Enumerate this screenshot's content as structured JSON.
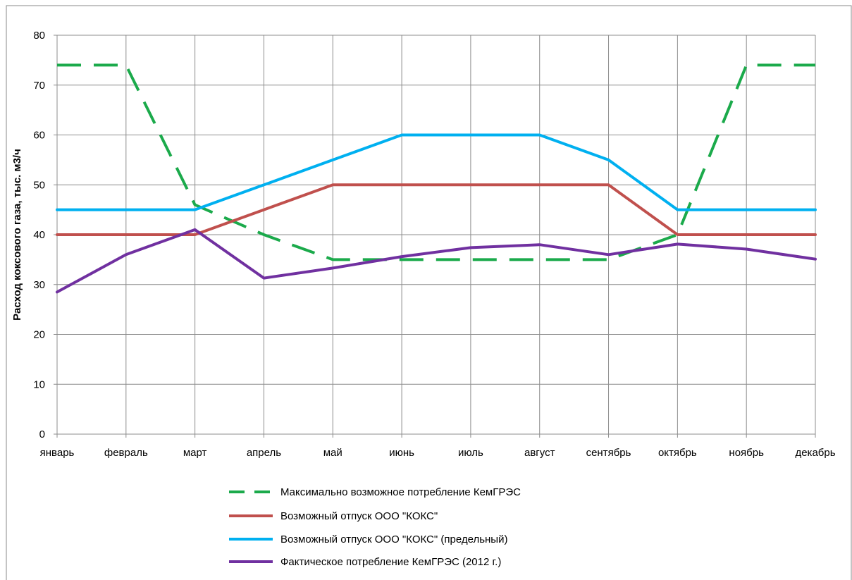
{
  "chart_data": {
    "type": "line",
    "title": "",
    "xlabel": "",
    "ylabel": "Расход коксового газа, тыс. м3/ч",
    "ylim": [
      0,
      80
    ],
    "yticks": [
      0,
      10,
      20,
      30,
      40,
      50,
      60,
      70,
      80
    ],
    "grid": true,
    "legend_position": "bottom",
    "categories": [
      "январь",
      "февраль",
      "март",
      "апрель",
      "май",
      "июнь",
      "июль",
      "август",
      "сентябрь",
      "октябрь",
      "ноябрь",
      "декабрь"
    ],
    "series": [
      {
        "name": "Максимально возможное потребление КемГРЭС",
        "color": "#1BAA4B",
        "dashed": true,
        "values": [
          74,
          74,
          46,
          40,
          35,
          35,
          35,
          35,
          35,
          40,
          74,
          74
        ]
      },
      {
        "name": "Возможный отпуск ООО \"КОКС\"",
        "color": "#C0504D",
        "dashed": false,
        "values": [
          40,
          40,
          40,
          45,
          50,
          50,
          50,
          50,
          50,
          40,
          40,
          40
        ]
      },
      {
        "name": "Возможный отпуск ООО \"КОКС\" (предельный)",
        "color": "#00B0F0",
        "dashed": false,
        "values": [
          45,
          45,
          45,
          50,
          55,
          60,
          60,
          60,
          55,
          45,
          45,
          45
        ]
      },
      {
        "name": "Фактическое потребление КемГРЭС (2012 г.)",
        "color": "#7030A0",
        "dashed": false,
        "values": [
          28.5,
          36,
          41,
          31.3,
          33.3,
          35.6,
          37.4,
          38,
          36,
          38.1,
          37.1,
          35.1
        ]
      }
    ]
  }
}
